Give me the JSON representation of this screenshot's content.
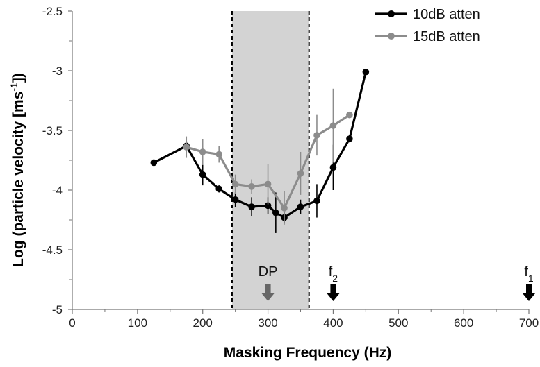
{
  "chart_data": {
    "type": "line",
    "title": "",
    "xlabel": "Masking Frequency (Hz)",
    "ylabel": "Log (particle velocity [ms⁻¹])",
    "xlim": [
      0,
      700
    ],
    "ylim": [
      -5,
      -2.5
    ],
    "x_ticks": [
      0,
      100,
      200,
      300,
      400,
      500,
      600,
      700
    ],
    "y_ticks": [
      -5,
      -4.5,
      -4,
      -3.5,
      -3,
      -2.5
    ],
    "x_tick_labels": [
      "0",
      "100",
      "200",
      "300",
      "400",
      "500",
      "600",
      "700"
    ],
    "y_tick_labels": [
      "-5",
      "-4.5",
      "-4",
      "-3.5",
      "-3",
      "-2.5"
    ],
    "grid": false,
    "legend_position": "top-right",
    "shaded_band": {
      "x_start": 245,
      "x_end": 363,
      "color": "#d3d3d3"
    },
    "series": [
      {
        "name": "10dB atten",
        "color": "#000000",
        "x": [
          125,
          175,
          200,
          225,
          250,
          275,
          300,
          312,
          325,
          350,
          375,
          400,
          425,
          450
        ],
        "y": [
          -3.77,
          -3.63,
          -3.87,
          -3.99,
          -4.08,
          -4.14,
          -4.13,
          -4.19,
          -4.23,
          -4.14,
          -4.09,
          -3.81,
          -3.57,
          -3.01
        ],
        "err": [
          0,
          0.04,
          0.09,
          0.03,
          0.06,
          0.08,
          0.07,
          0.17,
          0.05,
          0.06,
          0.14,
          0.19,
          0.03,
          0
        ]
      },
      {
        "name": "15dB atten",
        "color": "#8c8c8c",
        "x": [
          175,
          200,
          225,
          250,
          275,
          300,
          325,
          350,
          375,
          400,
          425
        ],
        "y": [
          -3.64,
          -3.68,
          -3.7,
          -3.95,
          -3.97,
          -3.95,
          -4.15,
          -3.86,
          -3.54,
          -3.46,
          -3.37
        ],
        "err": [
          0.09,
          0.11,
          0.07,
          0.08,
          0.06,
          0.17,
          0.14,
          0.18,
          0.17,
          0.31,
          0
        ]
      }
    ],
    "annotations": [
      {
        "label": "DP",
        "sub": "",
        "x": 300,
        "color": "#666666"
      },
      {
        "label": "f",
        "sub": "2",
        "x": 400,
        "color": "#000000"
      },
      {
        "label": "f",
        "sub": "1",
        "x": 700,
        "color": "#000000"
      }
    ]
  }
}
